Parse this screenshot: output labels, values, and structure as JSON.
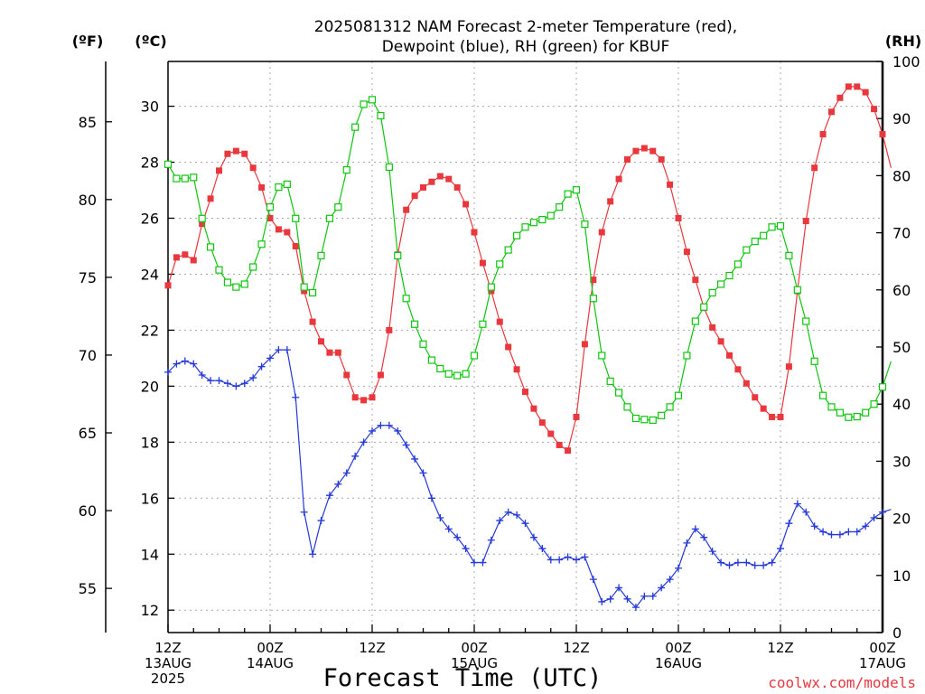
{
  "chart_data": {
    "type": "line",
    "title_line1": "2025081312 NAM Forecast 2-meter Temperature (red),",
    "title_line2": "Dewpoint (blue), RH (green) for KBUF",
    "xlabel": "Forecast Time (UTC)",
    "credit": "coolwx.com/models",
    "units": {
      "fahrenheit": "(ºF)",
      "celsius": "(ºC)",
      "rh": "(RH)"
    },
    "y_celsius": {
      "min": 11.2,
      "max": 31.6,
      "ticks": [
        "12",
        "14",
        "16",
        "18",
        "20",
        "22",
        "24",
        "26",
        "28",
        "30"
      ]
    },
    "y_fahrenheit": {
      "ticks": [
        "55",
        "60",
        "65",
        "70",
        "75",
        "80",
        "85"
      ]
    },
    "y_rh": {
      "min": 0,
      "max": 100,
      "ticks": [
        "0",
        "10",
        "20",
        "30",
        "40",
        "50",
        "60",
        "70",
        "80",
        "90",
        "100"
      ]
    },
    "x_hours": {
      "min": 0,
      "max": 84
    },
    "x_ticks": [
      {
        "hour": 0,
        "line1": "12Z",
        "line2": "13AUG",
        "line3": "2025"
      },
      {
        "hour": 12,
        "line1": "00Z",
        "line2": "14AUG",
        "line3": ""
      },
      {
        "hour": 24,
        "line1": "12Z",
        "line2": "",
        "line3": ""
      },
      {
        "hour": 36,
        "line1": "00Z",
        "line2": "15AUG",
        "line3": ""
      },
      {
        "hour": 48,
        "line1": "12Z",
        "line2": "",
        "line3": ""
      },
      {
        "hour": 60,
        "line1": "00Z",
        "line2": "16AUG",
        "line3": ""
      },
      {
        "hour": 72,
        "line1": "12Z",
        "line2": "",
        "line3": ""
      },
      {
        "hour": 84,
        "line1": "00Z",
        "line2": "17AUG",
        "line3": ""
      }
    ],
    "series": [
      {
        "name": "2-meter Temperature",
        "color": "#e8373d",
        "marker": "filled-square",
        "axis": "celsius",
        "values": [
          23.6,
          24.6,
          24.7,
          24.5,
          25.8,
          26.7,
          27.7,
          28.3,
          28.4,
          28.3,
          27.8,
          27.1,
          26.0,
          25.6,
          25.5,
          25.0,
          23.4,
          22.3,
          21.6,
          21.2,
          21.2,
          20.4,
          19.6,
          19.5,
          19.6,
          20.4,
          22.0,
          24.7,
          26.3,
          26.8,
          27.1,
          27.3,
          27.5,
          27.4,
          27.1,
          26.5,
          25.5,
          24.4,
          23.4,
          22.3,
          21.4,
          20.6,
          19.8,
          19.2,
          18.7,
          18.3,
          17.9,
          17.7,
          18.9,
          21.5,
          23.8,
          25.5,
          26.6,
          27.4,
          28.1,
          28.4,
          28.5,
          28.4,
          28.1,
          27.2,
          26.0,
          24.8,
          23.8,
          22.8,
          22.1,
          21.6,
          21.1,
          20.6,
          20.1,
          19.6,
          19.2,
          18.9,
          18.9,
          20.7,
          23.4,
          25.9,
          27.8,
          29.0,
          29.8,
          30.3,
          30.7,
          30.7,
          30.5,
          29.9,
          29.0,
          27.8
        ]
      },
      {
        "name": "Dewpoint",
        "color": "#2439d8",
        "marker": "plus",
        "axis": "celsius",
        "values": [
          20.5,
          20.8,
          20.9,
          20.8,
          20.4,
          20.2,
          20.2,
          20.1,
          20.0,
          20.1,
          20.3,
          20.7,
          21.0,
          21.3,
          21.3,
          19.6,
          15.5,
          14.0,
          15.2,
          16.1,
          16.5,
          16.9,
          17.5,
          18.0,
          18.4,
          18.6,
          18.6,
          18.4,
          17.9,
          17.4,
          16.9,
          16.0,
          15.3,
          14.9,
          14.6,
          14.2,
          13.7,
          13.7,
          14.5,
          15.2,
          15.5,
          15.4,
          15.1,
          14.6,
          14.2,
          13.8,
          13.8,
          13.9,
          13.8,
          13.9,
          13.1,
          12.3,
          12.4,
          12.8,
          12.4,
          12.1,
          12.5,
          12.5,
          12.8,
          13.1,
          13.5,
          14.4,
          14.9,
          14.6,
          14.1,
          13.7,
          13.6,
          13.7,
          13.7,
          13.6,
          13.6,
          13.7,
          14.2,
          15.1,
          15.8,
          15.5,
          15.0,
          14.8,
          14.7,
          14.7,
          14.8,
          14.8,
          15.0,
          15.3,
          15.5,
          15.6
        ]
      },
      {
        "name": "RH",
        "color": "#0fc60f",
        "marker": "open-square",
        "axis": "rh",
        "values": [
          82,
          79.5,
          79.5,
          79.7,
          72.5,
          67.5,
          63.5,
          61.3,
          60.5,
          61,
          64,
          68,
          74.5,
          78,
          78.5,
          72.5,
          60.5,
          59.5,
          66,
          72.5,
          74.5,
          81,
          88.5,
          92.5,
          93.3,
          90.5,
          81.5,
          66,
          58.5,
          54,
          50.5,
          47.7,
          46.2,
          45.3,
          45,
          45.3,
          48.5,
          54,
          60.5,
          64.5,
          67,
          69.5,
          71,
          71.8,
          72.3,
          73,
          74.5,
          76.8,
          77.5,
          71.5,
          58.5,
          48.5,
          44,
          42,
          39.5,
          37.5,
          37.3,
          37.2,
          38,
          39.5,
          41.5,
          48.5,
          54.5,
          57,
          59.5,
          61,
          62.5,
          64.5,
          67,
          68.5,
          69.5,
          71,
          71.2,
          66,
          60,
          54.5,
          47.5,
          41.5,
          39.5,
          38.5,
          37.7,
          37.8,
          38.5,
          40,
          43,
          47.5
        ]
      }
    ],
    "grid": true,
    "legend": "none"
  }
}
